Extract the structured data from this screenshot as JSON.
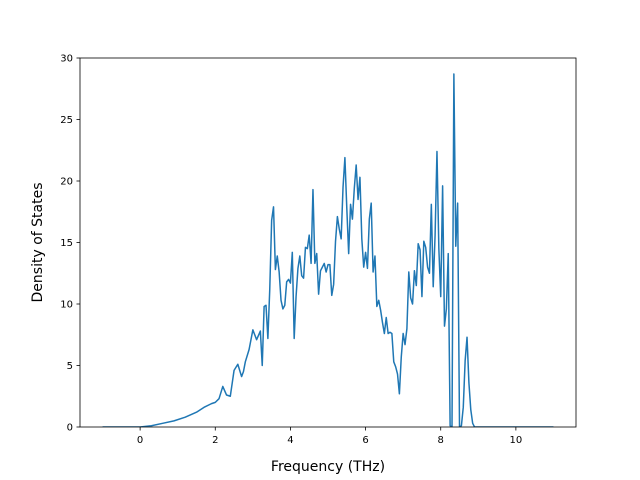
{
  "chart_data": {
    "type": "line",
    "title": "",
    "xlabel": "Frequency (THz)",
    "ylabel": "Density of States",
    "xlim": [
      -1.6,
      11.6
    ],
    "ylim": [
      0,
      30
    ],
    "xticks": [
      0,
      2,
      4,
      6,
      8,
      10
    ],
    "yticks": [
      0,
      5,
      10,
      15,
      20,
      25,
      30
    ],
    "grid": false,
    "legend": "none",
    "line_color": "#1f77b4",
    "series": [
      {
        "x": [
          -1.0,
          -0.5,
          0.0,
          0.3,
          0.6,
          0.9,
          1.2,
          1.5,
          1.7,
          1.9,
          2.0,
          2.1,
          2.2,
          2.3,
          2.4,
          2.5,
          2.6,
          2.7,
          2.75,
          2.8,
          2.9,
          3.0,
          3.05,
          3.1,
          3.2,
          3.25,
          3.3,
          3.35,
          3.4,
          3.45,
          3.5,
          3.55,
          3.6,
          3.65,
          3.7,
          3.75,
          3.8,
          3.85,
          3.9,
          3.95,
          4.0,
          4.05,
          4.1,
          4.15,
          4.2,
          4.25,
          4.3,
          4.35,
          4.4,
          4.45,
          4.5,
          4.55,
          4.6,
          4.65,
          4.7,
          4.75,
          4.8,
          4.85,
          4.9,
          4.95,
          5.0,
          5.05,
          5.1,
          5.15,
          5.2,
          5.25,
          5.3,
          5.35,
          5.4,
          5.45,
          5.5,
          5.55,
          5.6,
          5.65,
          5.7,
          5.75,
          5.8,
          5.85,
          5.9,
          5.95,
          6.0,
          6.05,
          6.1,
          6.15,
          6.2,
          6.25,
          6.3,
          6.35,
          6.4,
          6.45,
          6.5,
          6.55,
          6.6,
          6.65,
          6.7,
          6.75,
          6.8,
          6.85,
          6.9,
          6.95,
          7.0,
          7.05,
          7.1,
          7.15,
          7.2,
          7.25,
          7.3,
          7.35,
          7.4,
          7.45,
          7.5,
          7.55,
          7.6,
          7.65,
          7.7,
          7.75,
          7.8,
          7.85,
          7.9,
          7.95,
          8.0,
          8.05,
          8.1,
          8.15,
          8.2,
          8.25,
          8.3,
          8.35,
          8.4,
          8.45,
          8.5,
          8.55,
          8.6,
          8.65,
          8.7,
          8.75,
          8.8,
          8.85,
          8.9,
          8.95,
          9.0,
          9.05,
          9.1,
          9.15,
          9.2,
          9.25,
          9.3,
          9.35,
          9.4,
          9.45,
          9.5,
          9.55,
          9.6,
          9.65,
          9.7,
          9.75,
          9.8,
          9.85,
          9.9,
          9.95,
          10.0,
          10.1,
          10.2,
          10.5,
          11.0
        ],
        "y": [
          0,
          0,
          0,
          0.1,
          0.3,
          0.5,
          0.8,
          1.2,
          1.6,
          1.9,
          2.0,
          2.3,
          3.3,
          2.6,
          2.5,
          4.6,
          5.1,
          4.1,
          4.5,
          5.3,
          6.3,
          7.9,
          7.5,
          7.1,
          7.8,
          5.0,
          9.8,
          9.9,
          7.2,
          11.2,
          16.8,
          17.9,
          12.8,
          13.9,
          12.6,
          10.3,
          9.6,
          9.9,
          11.8,
          12.0,
          11.7,
          14.2,
          7.2,
          10.6,
          12.9,
          13.9,
          12.3,
          12.1,
          14.6,
          14.5,
          15.6,
          13.3,
          19.3,
          13.3,
          14.1,
          10.8,
          12.7,
          13.0,
          13.3,
          12.6,
          13.2,
          13.2,
          10.7,
          11.6,
          15.1,
          17.1,
          16.1,
          15.3,
          19.5,
          21.9,
          17.8,
          14.1,
          18.1,
          16.9,
          19.4,
          21.3,
          18.5,
          20.3,
          15.3,
          13.0,
          14.2,
          12.9,
          16.9,
          18.2,
          12.6,
          13.9,
          9.8,
          10.3,
          9.5,
          8.5,
          7.6,
          8.9,
          7.6,
          7.7,
          7.6,
          5.3,
          4.9,
          4.3,
          2.7,
          5.7,
          7.6,
          6.7,
          8.0,
          12.6,
          10.5,
          10.0,
          12.7,
          11.5,
          14.9,
          14.4,
          10.6,
          15.1,
          14.6,
          13.0,
          12.5,
          18.1,
          11.4,
          15.6,
          22.4,
          14.5,
          10.6,
          19.6,
          8.2,
          9.6,
          14.1,
          0.1,
          0,
          28.7,
          14.7,
          18.2,
          0,
          0.1,
          1.6,
          5.4,
          7.3,
          3.6,
          1.4,
          0.3,
          0,
          0,
          0,
          0,
          0,
          0,
          0,
          0,
          0,
          0,
          0,
          0,
          0,
          0,
          0,
          0,
          0,
          0,
          0,
          0,
          0,
          0,
          0,
          0,
          0,
          0,
          0
        ]
      }
    ]
  }
}
